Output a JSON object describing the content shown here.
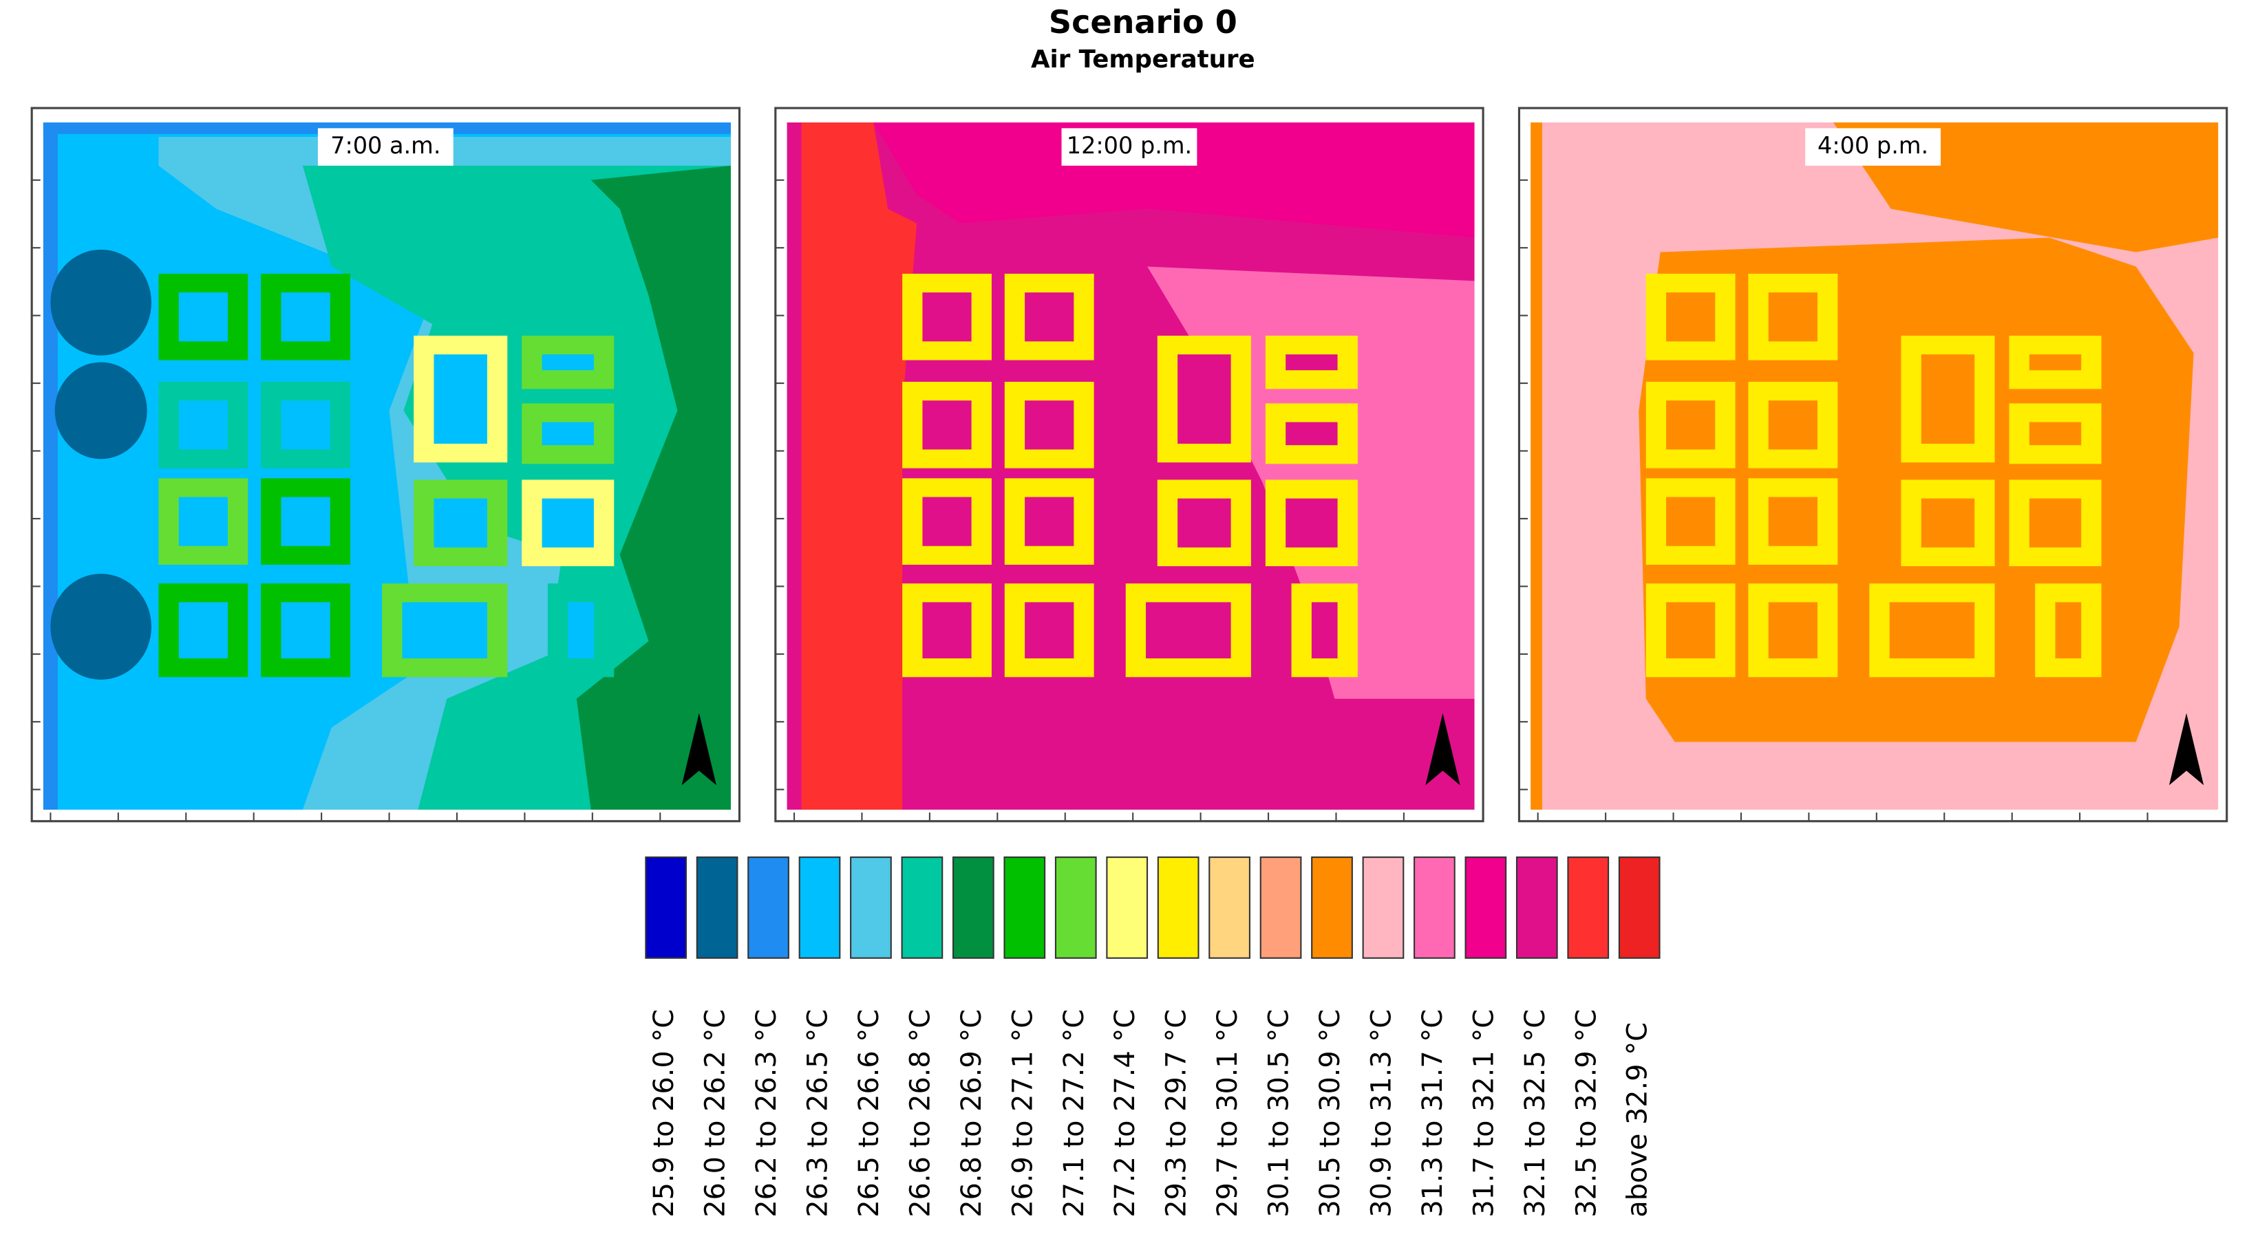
{
  "header": {
    "title": "Scenario 0",
    "subtitle": "Air Temperature"
  },
  "panels": [
    {
      "label": "7:00 a.m."
    },
    {
      "label": "12:00 p.m."
    },
    {
      "label": "4:00 p.m."
    }
  ],
  "legend": [
    {
      "label": "25.9 to 26.0 °C",
      "color": "#0000cd"
    },
    {
      "label": "26.0 to 26.2 °C",
      "color": "#006494"
    },
    {
      "label": "26.2 to 26.3 °C",
      "color": "#1e8cf0"
    },
    {
      "label": "26.3 to 26.5 °C",
      "color": "#00bfff"
    },
    {
      "label": "26.5 to 26.6 °C",
      "color": "#50c8e8"
    },
    {
      "label": "26.6 to 26.8 °C",
      "color": "#00c8a0"
    },
    {
      "label": "26.8 to 26.9 °C",
      "color": "#009040"
    },
    {
      "label": "26.9 to 27.1 °C",
      "color": "#00c000"
    },
    {
      "label": "27.1 to 27.2 °C",
      "color": "#66dd33"
    },
    {
      "label": "27.2 to 27.4 °C",
      "color": "#ffff77"
    },
    {
      "label": "29.3 to 29.7 °C",
      "color": "#ffee00"
    },
    {
      "label": "29.7 to 30.1 °C",
      "color": "#ffd580"
    },
    {
      "label": "30.1 to 30.5 °C",
      "color": "#ffa07a"
    },
    {
      "label": "30.5 to 30.9 °C",
      "color": "#ff8c00"
    },
    {
      "label": "30.9 to 31.3 °C",
      "color": "#ffb6c1"
    },
    {
      "label": "31.3 to 31.7 °C",
      "color": "#ff69b4"
    },
    {
      "label": "31.7 to 32.1 °C",
      "color": "#f0008c"
    },
    {
      "label": "32.1 to 32.5 °C",
      "color": "#e0108a"
    },
    {
      "label": "32.5 to 32.9 °C",
      "color": "#ff3030"
    },
    {
      "label": "above 32.9 °C",
      "color": "#ee2222"
    }
  ]
}
